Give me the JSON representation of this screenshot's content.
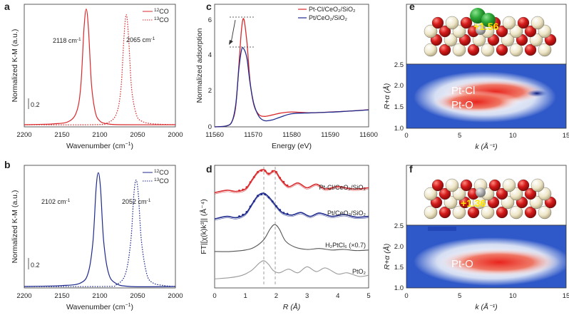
{
  "colors": {
    "red": "#d9292c",
    "blue": "#1e2a8c",
    "gray": "#555555",
    "lightgray": "#9a9a9a",
    "chlorine": "#2ea838",
    "oxygen": "#d41a1a",
    "cerium": "#efe7c9",
    "charge_text": "#ffe600"
  },
  "panels": {
    "a": {
      "letter": "a",
      "xlabel": "Wavenumber (cm",
      "xlabel_sup": "−1",
      "xlabel_end": ")",
      "ylabel": "Normalized K-M (a.u.)",
      "scale_bar": "0.2",
      "legend": [
        {
          "pre": "12",
          "label": "CO"
        },
        {
          "pre": "13",
          "label": "CO"
        }
      ],
      "peak_labels": [
        {
          "text": "2118 cm",
          "sup": "-1"
        },
        {
          "text": "2065 cm",
          "sup": "-1"
        }
      ],
      "ticks": [
        "2200",
        "2150",
        "2100",
        "2050",
        "2000"
      ]
    },
    "b": {
      "letter": "b",
      "xlabel": "Wavenumber (cm",
      "xlabel_sup": "−1",
      "xlabel_end": ")",
      "ylabel": "Normalized K-M (a.u.)",
      "scale_bar": "0.2",
      "legend": [
        {
          "pre": "12",
          "label": "CO"
        },
        {
          "pre": "13",
          "label": "CO"
        }
      ],
      "peak_labels": [
        {
          "text": "2102 cm",
          "sup": "-1"
        },
        {
          "text": "2052 cm",
          "sup": "-1"
        }
      ],
      "ticks": [
        "2200",
        "2150",
        "2100",
        "2050",
        "2000"
      ]
    },
    "c": {
      "letter": "c",
      "xlabel": "Energy (eV)",
      "ylabel": "Normalized adsorption",
      "legend": [
        "Pt-Cl/CeO₂/SiO₂",
        "Pt/CeO₂/SiO₂"
      ],
      "xticks": [
        "11560",
        "11570",
        "11580",
        "11590",
        "11600"
      ],
      "yticks": [
        "0",
        "2",
        "4",
        "6"
      ]
    },
    "d": {
      "letter": "d",
      "xlabel": "R (Å)",
      "ylabel": "FT|[χ(k)k³]| (Å⁻⁴)",
      "labels": [
        "Pt-Cl/CeO₂/SiO₂",
        "Pt/CeO₂/SiO₂",
        "H₂PtCl₆ (×0.7)",
        "PtO₂"
      ],
      "xticks": [
        "0",
        "1",
        "2",
        "3",
        "4",
        "5"
      ]
    },
    "e": {
      "letter": "e",
      "charge": "+1.56",
      "map_labels": [
        "Pt-Cl",
        "Pt-O"
      ],
      "xlabel": "k (Å⁻¹)",
      "ylabel": "R+α (Å)",
      "xticks": [
        "0",
        "5",
        "10",
        "15"
      ],
      "yticks": [
        "1.0",
        "1.5",
        "2.0",
        "2.5"
      ]
    },
    "f": {
      "letter": "f",
      "charge": "+1.36",
      "map_labels": [
        "Pt-O"
      ],
      "xlabel": "k (Å⁻¹)",
      "ylabel": "R+α (Å)",
      "xticks": [
        "0",
        "5",
        "10",
        "15"
      ],
      "yticks": [
        "1.0",
        "1.5",
        "2.0",
        "2.5"
      ]
    }
  },
  "chart_data": [
    {
      "type": "line",
      "panel": "a",
      "xlabel": "Wavenumber (cm−1)",
      "ylabel": "Normalized K-M (a.u.)",
      "xlim": [
        2200,
        2000
      ],
      "series": [
        {
          "name": "12CO",
          "style": "solid",
          "x": [
            2200,
            2160,
            2140,
            2130,
            2125,
            2121,
            2118,
            2115,
            2111,
            2106,
            2100,
            2090,
            2070,
            2000
          ],
          "y": [
            0.0,
            0.005,
            0.02,
            0.08,
            0.22,
            0.52,
            0.63,
            0.52,
            0.22,
            0.07,
            0.02,
            0.005,
            0.0,
            0.0
          ]
        },
        {
          "name": "13CO",
          "style": "dotted",
          "x": [
            2200,
            2110,
            2090,
            2078,
            2072,
            2068,
            2065,
            2062,
            2058,
            2052,
            2045,
            2030,
            2000
          ],
          "y": [
            0.0,
            0.0,
            0.01,
            0.06,
            0.2,
            0.48,
            0.6,
            0.48,
            0.2,
            0.06,
            0.02,
            0.005,
            0.0
          ]
        }
      ]
    },
    {
      "type": "line",
      "panel": "b",
      "xlabel": "Wavenumber (cm−1)",
      "ylabel": "Normalized K-M (a.u.)",
      "xlim": [
        2200,
        2000
      ],
      "series": [
        {
          "name": "12CO",
          "style": "solid",
          "x": [
            2200,
            2150,
            2125,
            2115,
            2109,
            2105,
            2102,
            2099,
            2095,
            2089,
            2080,
            2060,
            2000
          ],
          "y": [
            0.0,
            0.005,
            0.02,
            0.08,
            0.25,
            0.53,
            0.62,
            0.53,
            0.25,
            0.08,
            0.02,
            0.0,
            0.0
          ]
        },
        {
          "name": "13CO",
          "style": "dotted",
          "x": [
            2200,
            2095,
            2078,
            2066,
            2059,
            2055,
            2052,
            2049,
            2045,
            2038,
            2030,
            2015,
            2000
          ],
          "y": [
            0.0,
            0.0,
            0.01,
            0.07,
            0.25,
            0.5,
            0.58,
            0.5,
            0.25,
            0.07,
            0.02,
            0.005,
            0.0
          ]
        }
      ]
    },
    {
      "type": "line",
      "panel": "c",
      "xlabel": "Energy (eV)",
      "ylabel": "Normalized adsorption",
      "xlim": [
        11560,
        11600
      ],
      "ylim": [
        0,
        7
      ],
      "series": [
        {
          "name": "Pt-Cl/CeO₂/SiO₂",
          "x": [
            11560,
            11563,
            11564.5,
            11565.5,
            11566.3,
            11567.0,
            11567.6,
            11568.4,
            11569.2,
            11570.2,
            11571.5,
            11573,
            11575,
            11577,
            11580,
            11585,
            11590,
            11595,
            11600
          ],
          "y": [
            0.0,
            0.05,
            0.3,
            1.2,
            3.5,
            5.6,
            6.15,
            4.8,
            2.6,
            1.25,
            0.7,
            0.6,
            0.68,
            0.78,
            0.85,
            0.8,
            0.85,
            0.9,
            0.98
          ]
        },
        {
          "name": "Pt/CeO₂/SiO₂",
          "x": [
            11560,
            11563,
            11564.5,
            11565.5,
            11566.3,
            11567.0,
            11567.6,
            11568.4,
            11569.2,
            11570.2,
            11571.5,
            11573,
            11575,
            11577,
            11580,
            11585,
            11590,
            11595,
            11600
          ],
          "y": [
            0.0,
            0.05,
            0.3,
            1.3,
            3.3,
            4.4,
            4.45,
            3.9,
            2.5,
            1.3,
            0.6,
            0.35,
            0.4,
            0.55,
            0.75,
            0.8,
            0.84,
            0.9,
            0.97
          ]
        }
      ]
    },
    {
      "type": "line",
      "panel": "d",
      "xlabel": "R (Å)",
      "ylabel": "FT|[χ(k)k³]| (Å⁻⁴)",
      "xlim": [
        0,
        5
      ],
      "series": [
        {
          "name": "Pt-Cl/CeO₂/SiO₂",
          "offset": 3,
          "x": [
            0,
            0.4,
            0.7,
            1.0,
            1.2,
            1.4,
            1.6,
            1.75,
            1.9,
            2.0,
            2.15,
            2.4,
            2.7,
            3.0,
            3.3,
            3.6,
            4.0,
            4.5,
            5.0
          ],
          "y": [
            0.05,
            0.15,
            0.1,
            0.2,
            0.55,
            0.9,
            1.0,
            0.82,
            0.95,
            0.9,
            0.6,
            0.3,
            0.45,
            0.25,
            0.4,
            0.2,
            0.3,
            0.2,
            0.25
          ]
        },
        {
          "name": "Pt/CeO₂/SiO₂",
          "offset": 2,
          "x": [
            0,
            0.4,
            0.7,
            1.0,
            1.2,
            1.4,
            1.6,
            1.8,
            2.0,
            2.2,
            2.5,
            2.8,
            3.1,
            3.4,
            3.8,
            4.2,
            4.6,
            5.0
          ],
          "y": [
            0.05,
            0.15,
            0.1,
            0.25,
            0.6,
            0.95,
            1.05,
            0.85,
            0.55,
            0.3,
            0.2,
            0.3,
            0.15,
            0.28,
            0.15,
            0.22,
            0.12,
            0.15
          ]
        },
        {
          "name": "H₂PtCl₆ (×0.7)",
          "offset": 1,
          "x": [
            0,
            0.5,
            1.0,
            1.3,
            1.6,
            1.8,
            1.95,
            2.1,
            2.3,
            2.6,
            3.0,
            3.4,
            3.8,
            4.2,
            4.6,
            5.0
          ],
          "y": [
            0.05,
            0.05,
            0.1,
            0.2,
            0.45,
            0.8,
            0.95,
            0.8,
            0.4,
            0.2,
            0.12,
            0.15,
            0.1,
            0.12,
            0.08,
            0.1
          ]
        },
        {
          "name": "PtO₂",
          "offset": 0,
          "x": [
            0,
            0.5,
            0.9,
            1.2,
            1.45,
            1.6,
            1.75,
            1.9,
            2.1,
            2.4,
            2.7,
            3.0,
            3.3,
            3.6,
            4.0,
            4.3,
            4.7,
            5.0
          ],
          "y": [
            0.05,
            0.1,
            0.2,
            0.4,
            0.7,
            0.8,
            0.65,
            0.4,
            0.3,
            0.45,
            0.3,
            0.55,
            0.35,
            0.5,
            0.25,
            0.3,
            0.15,
            0.2
          ]
        }
      ]
    },
    {
      "type": "heatmap",
      "panel": "e",
      "xlabel": "k (Å⁻¹)",
      "ylabel": "R+α (Å)",
      "xlim": [
        0,
        15
      ],
      "ylim": [
        1.0,
        2.5
      ],
      "features": [
        {
          "label": "Pt-Cl",
          "k": 9.0,
          "r": 1.9,
          "intensity": 1.0
        },
        {
          "label": "Pt-O",
          "k": 7.0,
          "r": 1.6,
          "intensity": 0.85
        }
      ]
    },
    {
      "type": "heatmap",
      "panel": "f",
      "xlabel": "k (Å⁻¹)",
      "ylabel": "R+α (Å)",
      "xlim": [
        0,
        15
      ],
      "ylim": [
        1.0,
        2.5
      ],
      "features": [
        {
          "label": "Pt-O",
          "k": 8.0,
          "r": 1.6,
          "intensity": 1.0
        }
      ]
    }
  ]
}
